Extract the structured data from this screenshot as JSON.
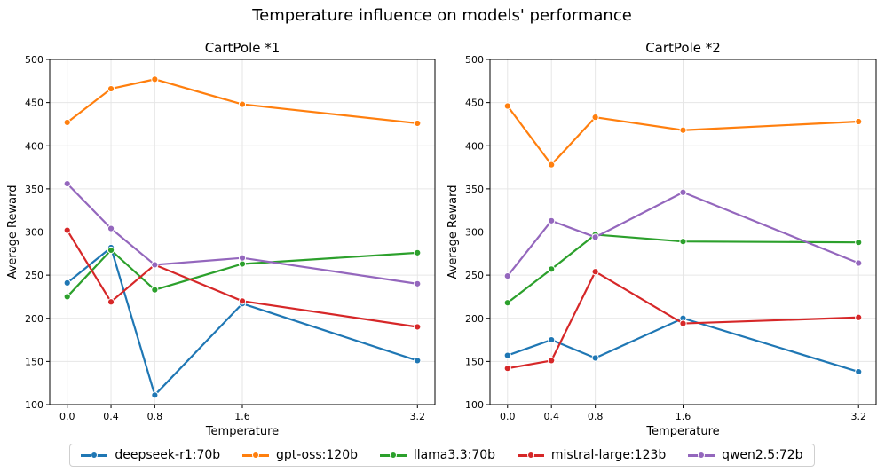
{
  "suptitle": "Temperature influence on models' performance",
  "chart_data": [
    {
      "type": "line",
      "title": "CartPole *1",
      "xlabel": "Temperature",
      "ylabel": "Average Reward",
      "x": [
        0.0,
        0.4,
        0.8,
        1.6,
        3.2
      ],
      "x_tick_labels": [
        "0.0",
        "0.4",
        "0.8",
        "1.6",
        "3.2"
      ],
      "ylim": [
        100,
        500
      ],
      "y_ticks": [
        100,
        150,
        200,
        250,
        300,
        350,
        400,
        450,
        500
      ],
      "grid": true,
      "series": [
        {
          "name": "deepseek-r1:70b",
          "values": [
            241,
            282,
            111,
            217,
            151
          ]
        },
        {
          "name": "gpt-oss:120b",
          "values": [
            427,
            466,
            477,
            448,
            426
          ]
        },
        {
          "name": "llama3.3:70b",
          "values": [
            225,
            279,
            233,
            263,
            276
          ]
        },
        {
          "name": "mistral-large:123b",
          "values": [
            302,
            219,
            262,
            220,
            190
          ]
        },
        {
          "name": "qwen2.5:72b",
          "values": [
            356,
            304,
            262,
            270,
            240
          ]
        }
      ]
    },
    {
      "type": "line",
      "title": "CartPole *2",
      "xlabel": "Temperature",
      "ylabel": "Average Reward",
      "x": [
        0.0,
        0.4,
        0.8,
        1.6,
        3.2
      ],
      "x_tick_labels": [
        "0.0",
        "0.4",
        "0.8",
        "1.6",
        "3.2"
      ],
      "ylim": [
        100,
        500
      ],
      "y_ticks": [
        100,
        150,
        200,
        250,
        300,
        350,
        400,
        450,
        500
      ],
      "grid": true,
      "series": [
        {
          "name": "deepseek-r1:70b",
          "values": [
            157,
            175,
            154,
            200,
            138
          ]
        },
        {
          "name": "gpt-oss:120b",
          "values": [
            446,
            378,
            433,
            418,
            428
          ]
        },
        {
          "name": "llama3.3:70b",
          "values": [
            218,
            257,
            297,
            289,
            288
          ]
        },
        {
          "name": "mistral-large:123b",
          "values": [
            142,
            151,
            254,
            194,
            201
          ]
        },
        {
          "name": "qwen2.5:72b",
          "values": [
            249,
            313,
            294,
            346,
            264
          ]
        }
      ]
    }
  ],
  "legend": {
    "placement": "bottom-center",
    "items": [
      {
        "label": "deepseek-r1:70b",
        "color": "#1f77b4"
      },
      {
        "label": "gpt-oss:120b",
        "color": "#ff7f0e"
      },
      {
        "label": "llama3.3:70b",
        "color": "#2ca02c"
      },
      {
        "label": "mistral-large:123b",
        "color": "#d62728"
      },
      {
        "label": "qwen2.5:72b",
        "color": "#9467bd"
      }
    ]
  }
}
